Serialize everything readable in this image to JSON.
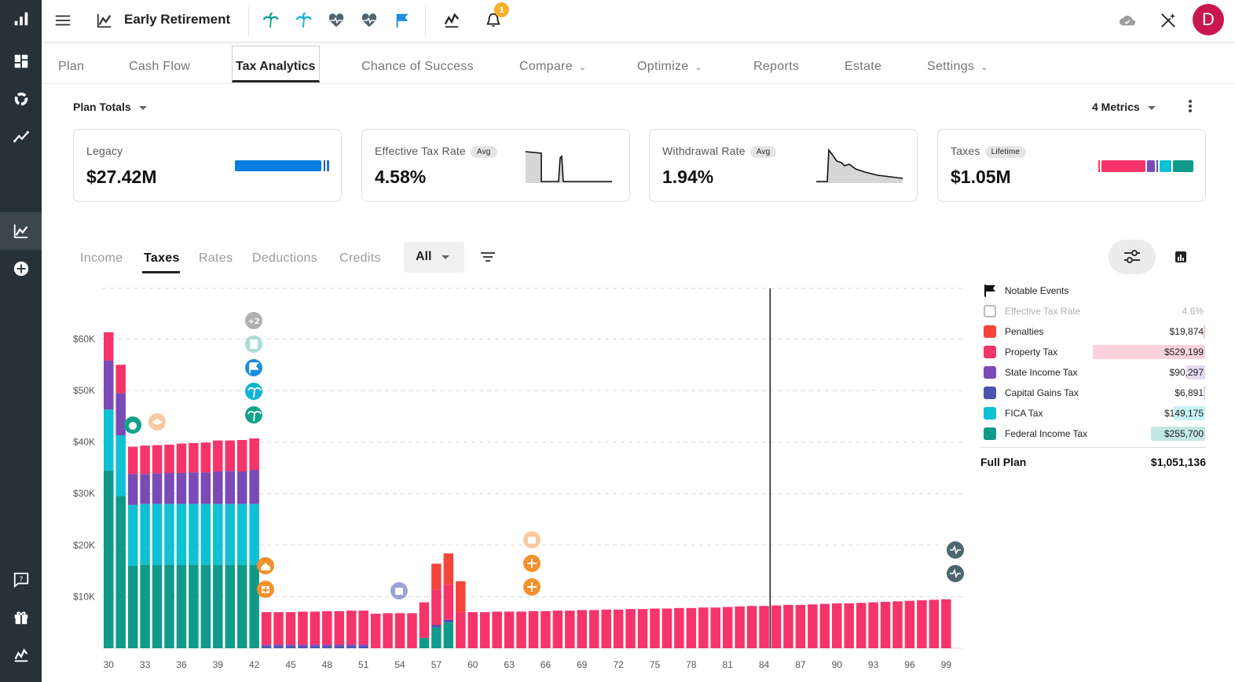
{
  "app": {
    "title": "Early Retirement",
    "notification_count": "1",
    "avatar_initial": "D"
  },
  "tabs": [
    {
      "label": "Plan"
    },
    {
      "label": "Cash Flow"
    },
    {
      "label": "Tax Analytics"
    },
    {
      "label": "Chance of Success"
    },
    {
      "label": "Compare"
    },
    {
      "label": "Optimize"
    },
    {
      "label": "Reports"
    },
    {
      "label": "Estate"
    },
    {
      "label": "Settings"
    }
  ],
  "toolbar": {
    "plan_totals": "Plan Totals",
    "metrics": "4 Metrics"
  },
  "cards": {
    "legacy": {
      "label": "Legacy",
      "value": "$27.42M"
    },
    "effective_tax_rate": {
      "label": "Effective Tax Rate",
      "pill": "Avg",
      "value": "4.58%"
    },
    "withdrawal_rate": {
      "label": "Withdrawal Rate",
      "pill": "Avg",
      "value": "1.94%"
    },
    "taxes": {
      "label": "Taxes",
      "pill": "Lifetime",
      "value": "$1.05M"
    }
  },
  "subtabs": {
    "income": "Income",
    "taxes": "Taxes",
    "rates": "Rates",
    "deductions": "Deductions",
    "credits": "Credits",
    "filter_value": "All"
  },
  "legend": {
    "notable_events": "Notable Events",
    "effective_tax_rate": {
      "label": "Effective Tax Rate",
      "value": "4.6%"
    },
    "items": [
      {
        "label": "Penalties",
        "value": "$19,874",
        "color": "#f4453c"
      },
      {
        "label": "Property Tax",
        "value": "$529,199",
        "color": "#f5356a"
      },
      {
        "label": "State Income Tax",
        "value": "$90,297",
        "color": "#7a4bb6"
      },
      {
        "label": "Capital Gains Tax",
        "value": "$6,891",
        "color": "#4a55ad"
      },
      {
        "label": "FICA Tax",
        "value": "$149,175",
        "color": "#0fc1d3"
      },
      {
        "label": "Federal Income Tax",
        "value": "$255,700",
        "color": "#109a8a"
      }
    ],
    "full_plan_label": "Full Plan",
    "full_plan_value": "$1,051,136"
  },
  "chart_data": {
    "type": "bar",
    "stacked": true,
    "y_tick_labels": [
      "$10K",
      "$20K",
      "$30K",
      "$40K",
      "$50K",
      "$60K"
    ],
    "x_tick_labels": [
      "30",
      "33",
      "36",
      "39",
      "42",
      "45",
      "48",
      "51",
      "54",
      "57",
      "60",
      "63",
      "66",
      "69",
      "72",
      "75",
      "78",
      "81",
      "84",
      "87",
      "90",
      "93",
      "96",
      "99"
    ],
    "ylim": [
      0,
      70000
    ],
    "grid": true,
    "current_age_marker": 85,
    "ages": [
      30,
      31,
      32,
      33,
      34,
      35,
      36,
      37,
      38,
      39,
      40,
      41,
      42,
      43,
      44,
      45,
      46,
      47,
      48,
      49,
      50,
      51,
      52,
      53,
      54,
      55,
      56,
      57,
      58,
      59,
      60,
      61,
      62,
      63,
      64,
      65,
      66,
      67,
      68,
      69,
      70,
      71,
      72,
      73,
      74,
      75,
      76,
      77,
      78,
      79,
      80,
      81,
      82,
      83,
      84,
      85,
      86,
      87,
      88,
      89,
      90,
      91,
      92,
      93,
      94,
      95,
      96,
      97,
      98,
      99
    ],
    "series": [
      {
        "name": "Federal Income Tax",
        "color": "#109a8a",
        "values": [
          34500,
          29500,
          16000,
          16200,
          16200,
          16200,
          16200,
          16200,
          16200,
          16200,
          16200,
          16200,
          16200,
          0,
          0,
          0,
          0,
          0,
          0,
          0,
          0,
          0,
          0,
          0,
          0,
          0,
          2000,
          4000,
          5000,
          0,
          0,
          0,
          0,
          0,
          0,
          0,
          0,
          0,
          0,
          0,
          0,
          0,
          0,
          0,
          0,
          0,
          0,
          0,
          0,
          0,
          0,
          0,
          0,
          0,
          0,
          0,
          0,
          0,
          0,
          0,
          0,
          0,
          0,
          0,
          0,
          0,
          0,
          0,
          0,
          0
        ]
      },
      {
        "name": "FICA Tax",
        "color": "#0fc1d3",
        "values": [
          11800,
          11800,
          11800,
          11800,
          11800,
          11800,
          11800,
          11800,
          11800,
          11800,
          11800,
          11800,
          11800,
          0,
          0,
          0,
          0,
          0,
          0,
          0,
          0,
          0,
          0,
          0,
          0,
          0,
          0,
          0,
          0,
          0,
          0,
          0,
          0,
          0,
          0,
          0,
          0,
          0,
          0,
          0,
          0,
          0,
          0,
          0,
          0,
          0,
          0,
          0,
          0,
          0,
          0,
          0,
          0,
          0,
          0,
          0,
          0,
          0,
          0,
          0,
          0,
          0,
          0,
          0,
          0,
          0,
          0,
          0,
          0,
          0
        ]
      },
      {
        "name": "Capital Gains Tax",
        "color": "#4a55ad",
        "values": [
          0,
          0,
          0,
          0,
          0,
          0,
          0,
          0,
          0,
          0,
          0,
          0,
          0,
          400,
          400,
          400,
          400,
          400,
          400,
          400,
          400,
          400,
          0,
          0,
          0,
          0,
          0,
          500,
          500,
          0,
          0,
          0,
          0,
          0,
          0,
          0,
          0,
          0,
          0,
          0,
          0,
          0,
          0,
          0,
          0,
          0,
          0,
          0,
          0,
          0,
          0,
          0,
          0,
          0,
          0,
          0,
          0,
          0,
          0,
          0,
          0,
          0,
          0,
          0,
          0,
          0,
          0,
          0,
          0,
          0
        ]
      },
      {
        "name": "State Income Tax",
        "color": "#7a4bb6",
        "values": [
          9500,
          8200,
          6000,
          5800,
          5900,
          6000,
          6000,
          6100,
          6100,
          6300,
          6400,
          6300,
          6600,
          300,
          300,
          300,
          300,
          300,
          300,
          300,
          300,
          300,
          0,
          0,
          0,
          0,
          0,
          0,
          0,
          0,
          0,
          0,
          0,
          0,
          0,
          0,
          0,
          0,
          0,
          0,
          0,
          0,
          0,
          0,
          0,
          0,
          0,
          0,
          0,
          0,
          0,
          0,
          0,
          0,
          0,
          0,
          0,
          0,
          0,
          0,
          0,
          0,
          0,
          0,
          0,
          0,
          0,
          0,
          0,
          0
        ]
      },
      {
        "name": "Property Tax",
        "color": "#f5356a",
        "values": [
          5500,
          5500,
          5300,
          5500,
          5500,
          5500,
          5700,
          5700,
          5800,
          6000,
          5900,
          6100,
          6100,
          6300,
          6300,
          6300,
          6400,
          6400,
          6500,
          6500,
          6600,
          6600,
          6700,
          6800,
          6800,
          6800,
          6900,
          6900,
          6900,
          7000,
          7000,
          7000,
          7100,
          7100,
          7100,
          7200,
          7200,
          7300,
          7300,
          7400,
          7400,
          7500,
          7500,
          7600,
          7600,
          7700,
          7700,
          7800,
          7800,
          7900,
          7900,
          8000,
          8100,
          8200,
          8200,
          8300,
          8400,
          8400,
          8500,
          8600,
          8700,
          8700,
          8800,
          8900,
          9000,
          9100,
          9200,
          9300,
          9400,
          9500
        ]
      },
      {
        "name": "Penalties",
        "color": "#f4453c",
        "values": [
          0,
          0,
          0,
          0,
          0,
          0,
          0,
          0,
          0,
          0,
          0,
          0,
          0,
          0,
          0,
          0,
          0,
          0,
          0,
          0,
          0,
          0,
          0,
          0,
          0,
          0,
          0,
          5000,
          6000,
          6000,
          0,
          0,
          0,
          0,
          0,
          0,
          0,
          0,
          0,
          0,
          0,
          0,
          0,
          0,
          0,
          0,
          0,
          0,
          0,
          0,
          0,
          0,
          0,
          0,
          0,
          0,
          0,
          0,
          0,
          0,
          0,
          0,
          0,
          0,
          0,
          0,
          0,
          0,
          0,
          0
        ]
      }
    ]
  }
}
